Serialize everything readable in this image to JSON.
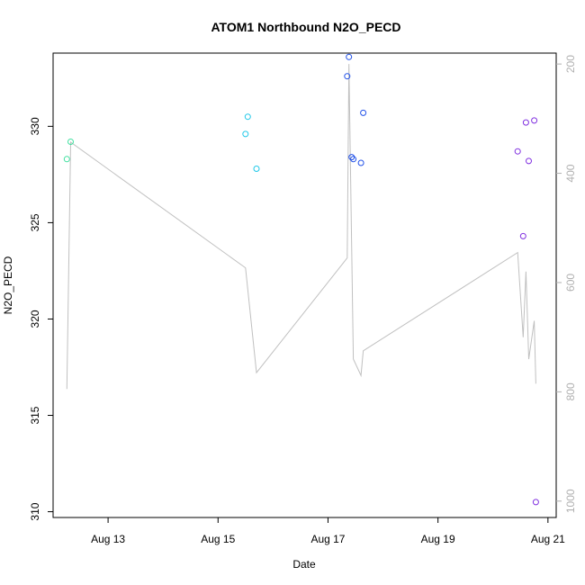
{
  "chart_data": {
    "type": "scatter",
    "title": "ATOM1 Northbound N2O_PECD",
    "xlabel": "Date",
    "ylabel": "N2O_PECD",
    "x_range": [
      12.0,
      21.15
    ],
    "x_ticks": [
      {
        "value": 13,
        "label": "Aug 13"
      },
      {
        "value": 15,
        "label": "Aug 15"
      },
      {
        "value": 17,
        "label": "Aug 17"
      },
      {
        "value": 19,
        "label": "Aug 19"
      },
      {
        "value": 21,
        "label": "Aug 21"
      }
    ],
    "ylim": [
      309.7,
      333.8
    ],
    "y_ticks": [
      310,
      315,
      320,
      325,
      330
    ],
    "secondary_axis": {
      "reversed": true,
      "range": [
        180,
        1030
      ],
      "ticks": [
        200,
        400,
        600,
        800,
        1000
      ],
      "color": "#b0b0b0"
    },
    "points": [
      {
        "x": 12.25,
        "y": 328.3,
        "color": "#40e0a0"
      },
      {
        "x": 12.32,
        "y": 329.2,
        "color": "#40e0a0"
      },
      {
        "x": 15.5,
        "y": 329.6,
        "color": "#20c8e8"
      },
      {
        "x": 15.54,
        "y": 330.5,
        "color": "#20c8e8"
      },
      {
        "x": 15.7,
        "y": 327.8,
        "color": "#20c8e8"
      },
      {
        "x": 17.35,
        "y": 332.6,
        "color": "#2050e8"
      },
      {
        "x": 17.38,
        "y": 333.6,
        "color": "#2050e8"
      },
      {
        "x": 17.43,
        "y": 328.4,
        "color": "#2050e8"
      },
      {
        "x": 17.46,
        "y": 328.3,
        "color": "#2050e8"
      },
      {
        "x": 17.6,
        "y": 328.1,
        "color": "#2050e8"
      },
      {
        "x": 17.64,
        "y": 330.7,
        "color": "#2050e8"
      },
      {
        "x": 20.45,
        "y": 328.7,
        "color": "#8030e0"
      },
      {
        "x": 20.55,
        "y": 324.3,
        "color": "#8030e0"
      },
      {
        "x": 20.6,
        "y": 330.2,
        "color": "#8030e0"
      },
      {
        "x": 20.65,
        "y": 328.2,
        "color": "#8030e0"
      },
      {
        "x": 20.75,
        "y": 330.3,
        "color": "#8030e0"
      },
      {
        "x": 20.78,
        "y": 310.5,
        "color": "#8030e0"
      }
    ],
    "secondary_line": {
      "color": "#c0c0c0",
      "points": [
        [
          12.25,
          795
        ],
        [
          12.32,
          343
        ],
        [
          15.5,
          573
        ],
        [
          15.7,
          765
        ],
        [
          17.35,
          555
        ],
        [
          17.38,
          200
        ],
        [
          17.46,
          740
        ],
        [
          17.6,
          770
        ],
        [
          17.64,
          725
        ],
        [
          20.45,
          545
        ],
        [
          20.55,
          700
        ],
        [
          20.6,
          580
        ],
        [
          20.65,
          740
        ],
        [
          20.75,
          670
        ],
        [
          20.78,
          785
        ]
      ]
    }
  }
}
